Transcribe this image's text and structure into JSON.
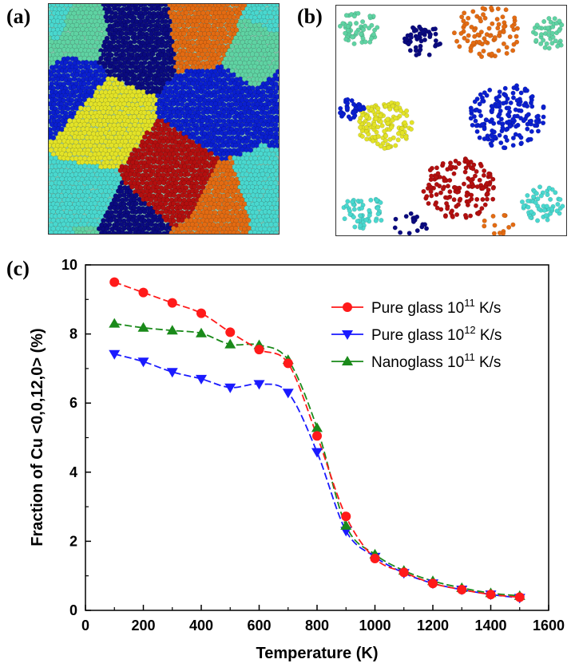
{
  "panels": {
    "a": "(a)",
    "b": "(b)",
    "c": "(c)"
  },
  "grain_colors": [
    "#5fd3a3",
    "#0a0a80",
    "#e36b12",
    "#0a1fd0",
    "#e3e327",
    "#b30f0f",
    "#49d8cf"
  ],
  "chart_data": {
    "type": "line",
    "xlabel": "Temperature (K)",
    "ylabel": "Fraction of Cu <0,0,12,0> (%)",
    "xlim": [
      0,
      1600
    ],
    "ylim": [
      0,
      10
    ],
    "xticks": [
      0,
      200,
      400,
      600,
      800,
      1000,
      1200,
      1400,
      1600
    ],
    "yticks": [
      0,
      2,
      4,
      6,
      8,
      10
    ],
    "legend_position": "top-right",
    "x": [
      100,
      200,
      300,
      400,
      500,
      600,
      700,
      800,
      900,
      1000,
      1100,
      1200,
      1300,
      1400,
      1500
    ],
    "series": [
      {
        "name": "Pure glass 10",
        "exp": "11",
        "unit": " K/s",
        "color": "#ff1a1a",
        "marker": "circle",
        "values": [
          9.5,
          9.2,
          8.9,
          8.6,
          8.05,
          7.55,
          7.15,
          5.05,
          2.72,
          1.5,
          1.1,
          0.78,
          0.6,
          0.46,
          0.38
        ]
      },
      {
        "name": "Pure glass 10",
        "exp": "12",
        "unit": " K/s",
        "color": "#1a1aff",
        "marker": "triangle-down",
        "values": [
          7.42,
          7.2,
          6.9,
          6.7,
          6.45,
          6.55,
          6.3,
          4.58,
          2.3,
          1.55,
          1.08,
          0.78,
          0.6,
          0.46,
          0.36
        ]
      },
      {
        "name": "Nanoglass 10",
        "exp": "11",
        "unit": " K/s",
        "color": "#1a8a1a",
        "marker": "triangle-up",
        "values": [
          8.3,
          8.18,
          8.1,
          8.02,
          7.7,
          7.68,
          7.25,
          5.28,
          2.45,
          1.62,
          1.15,
          0.85,
          0.65,
          0.5,
          0.42
        ]
      }
    ]
  }
}
